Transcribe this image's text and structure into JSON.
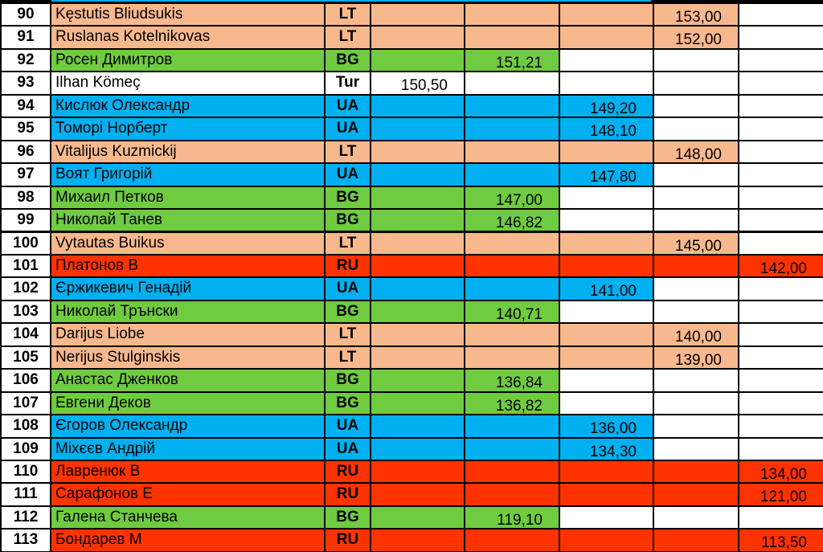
{
  "colors": {
    "LT": "#f8b88e",
    "BG": "#6fcb3f",
    "UA": "#00b0f0",
    "RU": "#ff3300",
    "Tur": "#ffffff"
  },
  "table": {
    "rows": [
      {
        "rank": "90",
        "name": "Kęstutis Bliudsukis",
        "country": "LT",
        "cells": [
          null,
          null,
          null,
          "153,00",
          null
        ]
      },
      {
        "rank": "91",
        "name": "Ruslanas Kotelnikovas",
        "country": "LT",
        "cells": [
          null,
          null,
          null,
          "152,00",
          null
        ]
      },
      {
        "rank": "92",
        "name": "Росен Димитров",
        "country": "BG",
        "cells": [
          null,
          "151,21",
          null,
          null,
          null
        ]
      },
      {
        "rank": "93",
        "name": "Ilhan Kömeç",
        "country": "Tur",
        "cells": [
          "150,50",
          null,
          null,
          null,
          null
        ]
      },
      {
        "rank": "94",
        "name": "Кислюк Олександр",
        "country": "UA",
        "cells": [
          null,
          null,
          "149,20",
          null,
          null
        ]
      },
      {
        "rank": "95",
        "name": "Томорі Норберт",
        "country": "UA",
        "cells": [
          null,
          null,
          "148,10",
          null,
          null
        ]
      },
      {
        "rank": "96",
        "name": "Vitalijus Kuzmickij",
        "country": "LT",
        "cells": [
          null,
          null,
          null,
          "148,00",
          null
        ]
      },
      {
        "rank": "97",
        "name": "Воят Григорій",
        "country": "UA",
        "cells": [
          null,
          null,
          "147,80",
          null,
          null
        ]
      },
      {
        "rank": "98",
        "name": "Михаил Петков",
        "country": "BG",
        "cells": [
          null,
          "147,00",
          null,
          null,
          null
        ]
      },
      {
        "rank": "99",
        "name": "Николай Танев",
        "country": "BG",
        "cells": [
          null,
          "146,82",
          null,
          null,
          null
        ]
      },
      {
        "rank": "100",
        "name": "Vytautas Buikus",
        "country": "LT",
        "cells": [
          null,
          null,
          null,
          "145,00",
          null
        ]
      },
      {
        "rank": "101",
        "name": "Платонов В",
        "country": "RU",
        "cells": [
          null,
          null,
          null,
          null,
          "142,00"
        ]
      },
      {
        "rank": "102",
        "name": "Єржикевич Генадій",
        "country": "UA",
        "cells": [
          null,
          null,
          "141,00",
          null,
          null
        ]
      },
      {
        "rank": "103",
        "name": "Николай Трънски",
        "country": "BG",
        "cells": [
          null,
          "140,71",
          null,
          null,
          null
        ]
      },
      {
        "rank": "104",
        "name": "Darijus Liobe",
        "country": "LT",
        "cells": [
          null,
          null,
          null,
          "140,00",
          null
        ]
      },
      {
        "rank": "105",
        "name": "Nerijus Stulginskis",
        "country": "LT",
        "cells": [
          null,
          null,
          null,
          "139,00",
          null
        ]
      },
      {
        "rank": "106",
        "name": "Анастас Дженков",
        "country": "BG",
        "cells": [
          null,
          "136,84",
          null,
          null,
          null
        ]
      },
      {
        "rank": "107",
        "name": "Евгени Деков",
        "country": "BG",
        "cells": [
          null,
          "136,82",
          null,
          null,
          null
        ]
      },
      {
        "rank": "108",
        "name": "Єгоров Олександр",
        "country": "UA",
        "cells": [
          null,
          null,
          "136,00",
          null,
          null
        ]
      },
      {
        "rank": "109",
        "name": "Міхєєв Андрій",
        "country": "UA",
        "cells": [
          null,
          null,
          "134,30",
          null,
          null
        ]
      },
      {
        "rank": "110",
        "name": "Лавренюк В",
        "country": "RU",
        "cells": [
          null,
          null,
          null,
          null,
          "134,00"
        ]
      },
      {
        "rank": "111",
        "name": "Сарафонов Е",
        "country": "RU",
        "cells": [
          null,
          null,
          null,
          null,
          "121,00"
        ]
      },
      {
        "rank": "112",
        "name": "Галена Станчева",
        "country": "BG",
        "cells": [
          null,
          "119,10",
          null,
          null,
          null
        ]
      },
      {
        "rank": "113",
        "name": "Бондарев М",
        "country": "RU",
        "cells": [
          null,
          null,
          null,
          null,
          "113,50"
        ]
      }
    ]
  }
}
